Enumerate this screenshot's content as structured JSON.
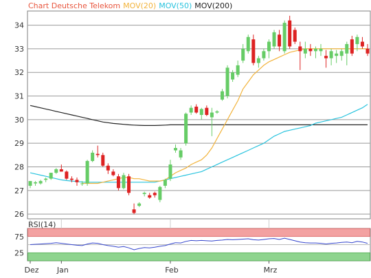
{
  "legend": {
    "title": "Chart Deutsche Telekom",
    "mov20": "MOV(20)",
    "mov50": "MOV(50)",
    "mov200": "MOV(200)"
  },
  "colors": {
    "title": "#e8553d",
    "mov20": "#f2b33a",
    "mov50": "#27c3de",
    "mov200": "#222222",
    "up": "#66cc66",
    "down": "#dd2222",
    "rsi_line": "#3344cc",
    "rsi_upper_zone": "#f3a1a1",
    "rsi_lower_zone": "#8ed48e",
    "grid": "#999999",
    "frame": "#7f7f7f"
  },
  "chart_data": [
    {
      "type": "candlestick",
      "title": "Chart Deutsche Telekom",
      "ylim": [
        25.8,
        34.6
      ],
      "yticks": [
        "26",
        "27",
        "28",
        "29",
        "30",
        "31",
        "32",
        "33",
        "34"
      ],
      "xticks": [
        {
          "label": "Dez",
          "index": 0
        },
        {
          "label": "Jan",
          "index": 6
        },
        {
          "label": "Feb",
          "index": 27
        },
        {
          "label": "Mrz",
          "index": 46
        }
      ],
      "grid": true,
      "candles": [
        [
          27.2,
          27.4,
          27.1,
          27.4
        ],
        [
          27.3,
          27.4,
          27.2,
          27.35
        ],
        [
          27.3,
          27.45,
          27.25,
          27.4
        ],
        [
          27.45,
          27.55,
          27.35,
          27.5
        ],
        [
          27.5,
          27.75,
          27.45,
          27.75
        ],
        [
          27.75,
          27.95,
          27.7,
          27.9
        ],
        [
          27.9,
          28.1,
          27.8,
          27.8
        ],
        [
          27.8,
          27.85,
          27.45,
          27.5
        ],
        [
          27.5,
          27.6,
          27.35,
          27.45
        ],
        [
          27.45,
          27.55,
          27.2,
          27.35
        ],
        [
          27.3,
          27.4,
          27.2,
          27.3
        ],
        [
          27.3,
          28.3,
          27.2,
          28.25
        ],
        [
          28.25,
          28.7,
          28.2,
          28.6
        ],
        [
          28.55,
          28.9,
          28.4,
          28.5
        ],
        [
          28.5,
          28.6,
          28.0,
          28.05
        ],
        [
          28.05,
          28.15,
          27.7,
          27.85
        ],
        [
          27.8,
          27.9,
          27.6,
          27.65
        ],
        [
          27.6,
          27.7,
          27.0,
          27.1
        ],
        [
          27.1,
          27.75,
          27.05,
          27.65
        ],
        [
          27.6,
          27.7,
          26.8,
          26.9
        ],
        [
          26.2,
          26.45,
          26.0,
          26.05
        ],
        [
          26.35,
          26.5,
          26.3,
          26.45
        ],
        [
          26.85,
          26.95,
          26.75,
          26.9
        ],
        [
          26.8,
          26.9,
          26.65,
          26.7
        ],
        [
          26.9,
          26.95,
          26.7,
          26.8
        ],
        [
          26.6,
          27.2,
          26.5,
          27.15
        ],
        [
          27.2,
          27.5,
          27.1,
          27.45
        ],
        [
          27.5,
          28.3,
          27.4,
          28.1
        ],
        [
          28.7,
          28.95,
          28.6,
          28.8
        ],
        [
          28.4,
          28.8,
          28.3,
          28.7
        ],
        [
          29.0,
          30.3,
          28.9,
          30.25
        ],
        [
          30.3,
          30.6,
          30.2,
          30.5
        ],
        [
          30.55,
          30.65,
          30.25,
          30.3
        ],
        [
          30.2,
          30.5,
          30.0,
          30.45
        ],
        [
          30.5,
          30.6,
          30.15,
          30.2
        ],
        [
          30.1,
          30.5,
          29.3,
          30.3
        ],
        [
          30.3,
          30.4,
          30.25,
          30.35
        ],
        [
          30.85,
          31.3,
          30.8,
          31.2
        ],
        [
          31.0,
          32.3,
          30.9,
          32.2
        ],
        [
          31.7,
          32.1,
          31.6,
          32.0
        ],
        [
          31.9,
          32.5,
          31.8,
          32.3
        ],
        [
          32.5,
          33.2,
          32.4,
          33.0
        ],
        [
          32.9,
          33.6,
          32.8,
          33.5
        ],
        [
          33.4,
          33.6,
          32.3,
          32.4
        ],
        [
          32.4,
          32.7,
          32.2,
          32.6
        ],
        [
          32.6,
          33.0,
          32.5,
          32.9
        ],
        [
          32.9,
          33.4,
          32.6,
          33.3
        ],
        [
          33.1,
          33.8,
          33.0,
          33.7
        ],
        [
          33.6,
          33.8,
          32.9,
          33.1
        ],
        [
          32.9,
          34.2,
          32.8,
          34.1
        ],
        [
          34.2,
          34.4,
          33.0,
          33.1
        ],
        [
          33.8,
          33.9,
          33.2,
          33.3
        ],
        [
          33.1,
          33.3,
          32.1,
          32.9
        ],
        [
          32.8,
          33.3,
          32.6,
          33.0
        ],
        [
          33.0,
          33.2,
          32.7,
          32.9
        ],
        [
          32.9,
          33.1,
          32.6,
          33.0
        ],
        [
          32.9,
          33.2,
          32.7,
          33.0
        ],
        [
          32.7,
          32.95,
          32.2,
          32.6
        ],
        [
          32.6,
          33.0,
          32.3,
          32.9
        ],
        [
          32.7,
          32.95,
          32.4,
          32.8
        ],
        [
          32.7,
          33.0,
          32.5,
          32.9
        ],
        [
          32.8,
          33.3,
          32.3,
          33.2
        ],
        [
          33.4,
          33.55,
          32.7,
          32.8
        ],
        [
          33.2,
          33.6,
          32.9,
          33.5
        ],
        [
          33.3,
          33.5,
          33.0,
          33.1
        ],
        [
          33.0,
          33.2,
          32.7,
          32.8
        ]
      ],
      "series": [
        {
          "name": "MOV(20)",
          "values": [
            null,
            null,
            null,
            null,
            null,
            null,
            null,
            null,
            null,
            null,
            27.3,
            27.3,
            27.3,
            27.3,
            27.35,
            27.4,
            27.45,
            27.5,
            27.55,
            27.55,
            27.5,
            27.5,
            27.45,
            27.4,
            27.4,
            27.4,
            27.45,
            27.6,
            27.75,
            27.85,
            27.95,
            28.1,
            28.2,
            28.3,
            28.5,
            28.8,
            29.2,
            29.6,
            30.0,
            30.4,
            30.8,
            31.3,
            31.6,
            31.9,
            32.1,
            32.3,
            32.45,
            32.55,
            32.65,
            32.75,
            32.85,
            32.9,
            32.95,
            33.0,
            33.0,
            33.0,
            33.0,
            33.0,
            33.0,
            33.0,
            33.0,
            33.0,
            33.0,
            33.0,
            33.0,
            33.0
          ]
        },
        {
          "name": "MOV(50)",
          "values": [
            27.75,
            27.7,
            27.65,
            27.6,
            27.55,
            27.5,
            27.45,
            27.42,
            27.4,
            27.38,
            27.36,
            27.35,
            27.35,
            27.35,
            27.35,
            27.35,
            27.35,
            27.35,
            27.35,
            27.35,
            27.35,
            27.35,
            27.35,
            27.35,
            27.35,
            27.4,
            27.45,
            27.5,
            27.55,
            27.6,
            27.65,
            27.7,
            27.75,
            27.8,
            27.9,
            28.0,
            28.1,
            28.2,
            28.3,
            28.4,
            28.5,
            28.6,
            28.7,
            28.8,
            28.9,
            29.0,
            29.15,
            29.3,
            29.4,
            29.5,
            29.55,
            29.6,
            29.65,
            29.7,
            29.75,
            29.85,
            29.9,
            29.95,
            30.0,
            30.05,
            30.1,
            30.2,
            30.3,
            30.4,
            30.5,
            30.65
          ]
        },
        {
          "name": "MOV(200)",
          "values": [
            30.6,
            30.55,
            30.5,
            30.45,
            30.4,
            30.35,
            30.3,
            30.25,
            30.2,
            30.15,
            30.1,
            30.05,
            30.0,
            29.95,
            29.9,
            29.87,
            29.84,
            29.82,
            29.8,
            29.78,
            29.77,
            29.76,
            29.75,
            29.75,
            29.75,
            29.76,
            29.77,
            29.78,
            29.78,
            29.78,
            29.78,
            29.78,
            29.78,
            29.78,
            29.78,
            29.78,
            29.78,
            29.78,
            29.78,
            29.78,
            29.78,
            29.78,
            29.78,
            29.78,
            29.78,
            29.78,
            29.78,
            29.78,
            29.78,
            29.78,
            29.78,
            29.78,
            29.78,
            29.78,
            29.78,
            29.78,
            29.78,
            29.78,
            29.78,
            29.78,
            29.78,
            29.78,
            29.78,
            29.78,
            29.78,
            29.78
          ]
        }
      ]
    },
    {
      "type": "line",
      "title": "RSI(14)",
      "ylim": [
        0,
        100
      ],
      "yticks": [
        "75",
        "25"
      ],
      "zones": [
        {
          "from": 75,
          "to": 100
        },
        {
          "from": 0,
          "to": 25
        }
      ],
      "series": [
        {
          "name": "RSI(14)",
          "values": [
            50,
            51,
            52,
            53,
            54,
            56,
            54,
            52,
            50,
            48,
            47,
            52,
            55,
            54,
            50,
            47,
            45,
            42,
            44,
            40,
            34,
            38,
            41,
            40,
            42,
            45,
            47,
            52,
            56,
            55,
            60,
            63,
            62,
            63,
            62,
            61,
            63,
            64,
            66,
            65,
            66,
            67,
            68,
            65,
            64,
            66,
            68,
            69,
            66,
            70,
            66,
            62,
            58,
            56,
            55,
            55,
            54,
            52,
            54,
            55,
            57,
            58,
            56,
            60,
            58,
            54
          ]
        }
      ]
    }
  ]
}
